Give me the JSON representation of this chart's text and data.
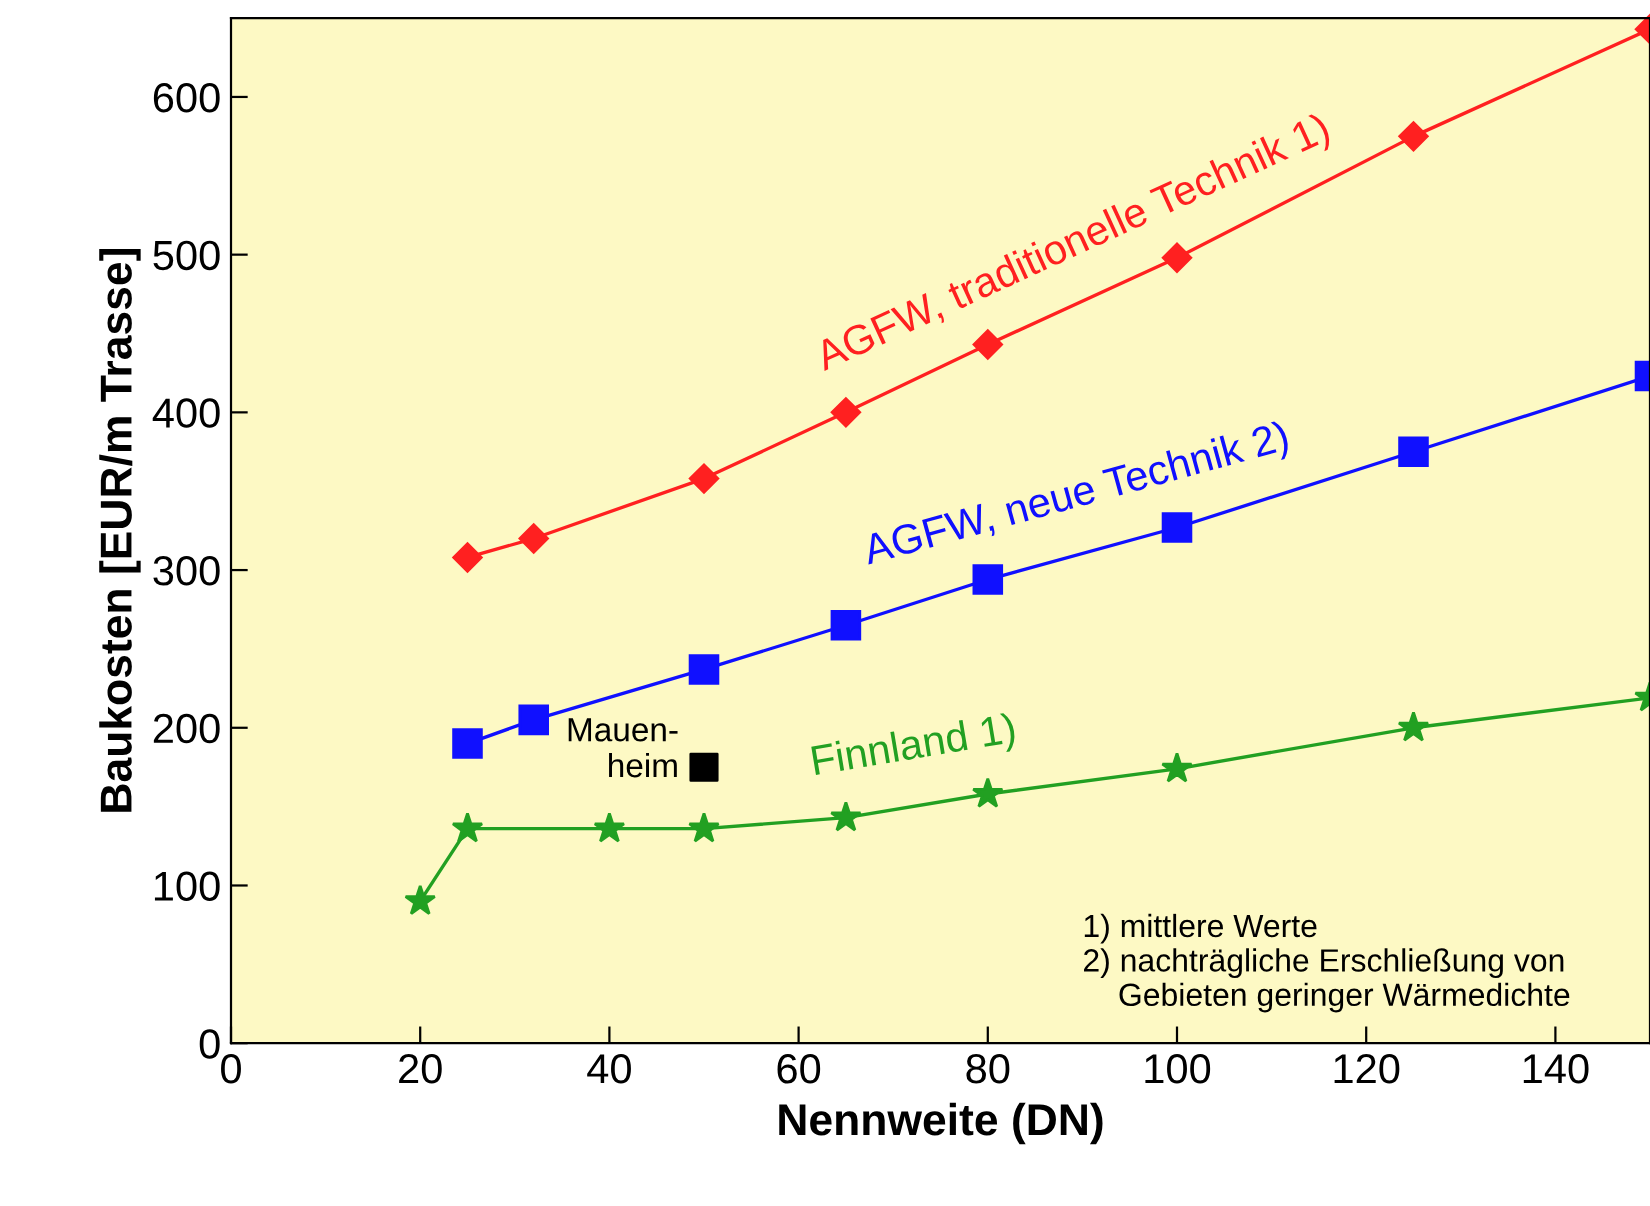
{
  "chart_data": {
    "type": "line",
    "xlabel": "Nennweite (DN)",
    "ylabel": "Baukosten [EUR/m Trasse]",
    "xlim": [
      0,
      150
    ],
    "ylim": [
      0,
      650
    ],
    "xticks": [
      0,
      20,
      40,
      60,
      80,
      100,
      120,
      140
    ],
    "yticks": [
      0,
      100,
      200,
      300,
      400,
      500,
      600
    ],
    "grid": false,
    "legend": false,
    "series": [
      {
        "name": "AGFW, traditionelle Technik 1)",
        "color": "#ff2020",
        "marker": "diamond",
        "x": [
          25,
          32,
          50,
          65,
          80,
          100,
          125,
          150
        ],
        "values": [
          308,
          320,
          358,
          400,
          443,
          498,
          575,
          643
        ]
      },
      {
        "name": "AGFW, neue Technik 2)",
        "color": "#1010ff",
        "marker": "square",
        "x": [
          25,
          32,
          50,
          65,
          80,
          100,
          125,
          150
        ],
        "values": [
          190,
          205,
          237,
          265,
          294,
          327,
          375,
          423
        ]
      },
      {
        "name": "Finnland 1)",
        "color": "#22a022",
        "marker": "star",
        "x": [
          20,
          25,
          40,
          50,
          65,
          80,
          100,
          125,
          150
        ],
        "values": [
          90,
          136,
          136,
          136,
          143,
          158,
          174,
          200,
          219
        ]
      },
      {
        "name": "Mauen-\nheim",
        "type": "scatter",
        "color": "#000000",
        "marker": "square",
        "x": [
          50
        ],
        "values": [
          175
        ]
      }
    ],
    "annotations": [
      "1) mittlere Werte\n2) nachträgliche Erschließung von\n    Gebieten geringer Wärmedichte"
    ]
  }
}
